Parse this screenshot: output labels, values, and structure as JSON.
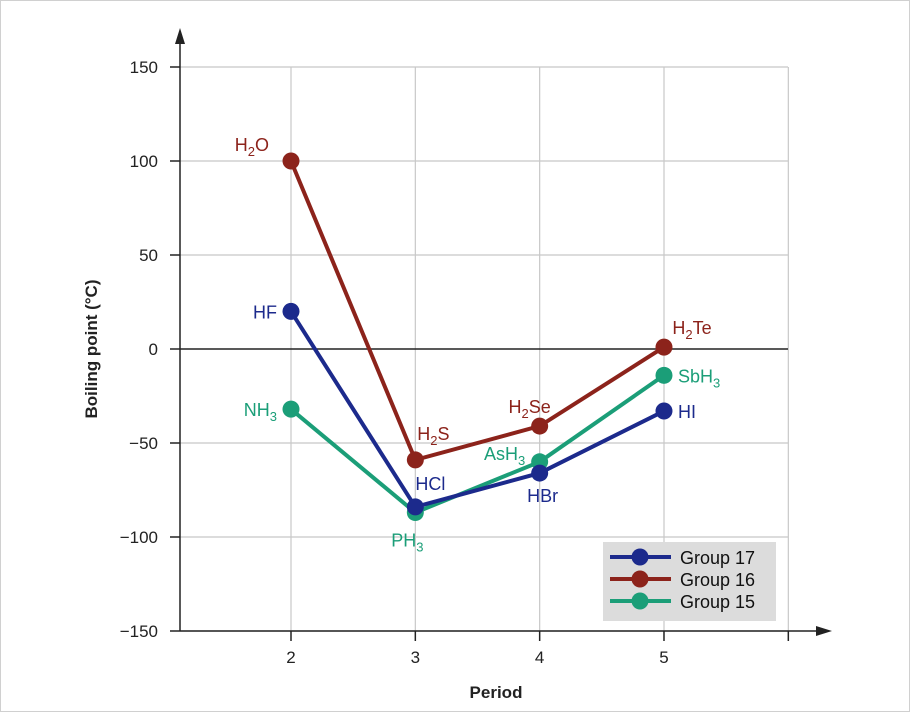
{
  "chart_data": {
    "type": "line",
    "title": "",
    "xlabel": "Period",
    "ylabel": "Boiling point (°C)",
    "x": [
      2,
      3,
      4,
      5
    ],
    "xticks": [
      "2",
      "3",
      "4",
      "5"
    ],
    "yticks": [
      "150",
      "100",
      "50",
      "0",
      "−50",
      "−100",
      "−150"
    ],
    "ytick_values": [
      150,
      100,
      50,
      0,
      -50,
      -100,
      -150
    ],
    "xlim": [
      1.11,
      6
    ],
    "ylim": [
      -150,
      150
    ],
    "grid": true,
    "legend_placement": "bottom-right",
    "series": [
      {
        "name": "Group 17",
        "color": "#1c2a8c",
        "values": [
          20,
          -84,
          -66,
          -33
        ],
        "point_labels": [
          {
            "base": "HF",
            "sub": "",
            "rest": ""
          },
          {
            "base": "HCl",
            "sub": "",
            "rest": ""
          },
          {
            "base": "HBr",
            "sub": "",
            "rest": ""
          },
          {
            "base": "HI",
            "sub": "",
            "rest": ""
          }
        ]
      },
      {
        "name": "Group 16",
        "color": "#8c231b",
        "values": [
          100,
          -59,
          -41,
          1
        ],
        "point_labels": [
          {
            "base": "H",
            "sub": "2",
            "rest": "O"
          },
          {
            "base": "H",
            "sub": "2",
            "rest": "S"
          },
          {
            "base": "H",
            "sub": "2",
            "rest": "Se"
          },
          {
            "base": "H",
            "sub": "2",
            "rest": "Te"
          }
        ]
      },
      {
        "name": "Group 15",
        "color": "#1b9e78",
        "values": [
          -32,
          -87,
          -60,
          -14
        ],
        "point_labels": [
          {
            "base": "NH",
            "sub": "3",
            "rest": ""
          },
          {
            "base": "PH",
            "sub": "3",
            "rest": ""
          },
          {
            "base": "AsH",
            "sub": "3",
            "rest": ""
          },
          {
            "base": "SbH",
            "sub": "3",
            "rest": ""
          }
        ]
      }
    ]
  }
}
